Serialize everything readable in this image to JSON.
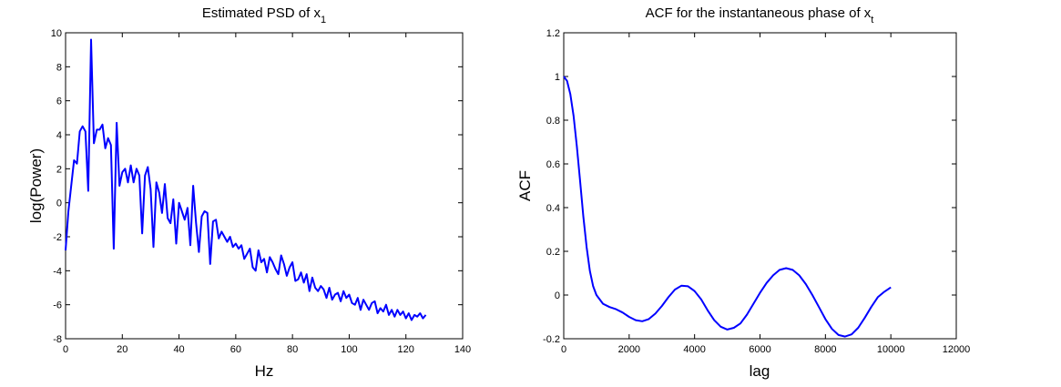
{
  "chart_data": [
    {
      "type": "line",
      "title": "Estimated PSD of x",
      "title_subscript": "1",
      "xlabel": "Hz",
      "ylabel": "log(Power)",
      "xlim": [
        0,
        140
      ],
      "ylim": [
        -8,
        10
      ],
      "xticks": [
        0,
        20,
        40,
        60,
        80,
        100,
        120,
        140
      ],
      "yticks": [
        -8,
        -6,
        -4,
        -2,
        0,
        2,
        4,
        6,
        8,
        10
      ],
      "grid": false,
      "color": "#0000ff",
      "x": [
        0,
        1,
        2,
        3,
        4,
        5,
        6,
        7,
        8,
        9,
        10,
        11,
        12,
        13,
        14,
        15,
        16,
        17,
        18,
        19,
        20,
        21,
        22,
        23,
        24,
        25,
        26,
        27,
        28,
        29,
        30,
        31,
        32,
        33,
        34,
        35,
        36,
        37,
        38,
        39,
        40,
        41,
        42,
        43,
        44,
        45,
        46,
        47,
        48,
        49,
        50,
        51,
        52,
        53,
        54,
        55,
        56,
        57,
        58,
        59,
        60,
        61,
        62,
        63,
        64,
        65,
        66,
        67,
        68,
        69,
        70,
        71,
        72,
        73,
        74,
        75,
        76,
        77,
        78,
        79,
        80,
        81,
        82,
        83,
        84,
        85,
        86,
        87,
        88,
        89,
        90,
        91,
        92,
        93,
        94,
        95,
        96,
        97,
        98,
        99,
        100,
        101,
        102,
        103,
        104,
        105,
        106,
        107,
        108,
        109,
        110,
        111,
        112,
        113,
        114,
        115,
        116,
        117,
        118,
        119,
        120,
        121,
        122,
        123,
        124,
        125,
        126,
        127
      ],
      "y": [
        -2.8,
        -0.5,
        1.0,
        2.5,
        2.3,
        4.2,
        4.5,
        4.2,
        0.7,
        9.6,
        3.5,
        4.3,
        4.3,
        4.6,
        3.2,
        3.8,
        3.4,
        -2.7,
        4.7,
        1.0,
        1.8,
        2.0,
        1.2,
        2.2,
        1.2,
        2.0,
        1.6,
        -1.8,
        1.6,
        2.1,
        0.8,
        -2.6,
        1.2,
        0.6,
        -0.6,
        1.1,
        -0.9,
        -1.2,
        0.2,
        -2.4,
        0.0,
        -0.5,
        -1.0,
        -0.3,
        -2.5,
        1.0,
        -1.2,
        -2.9,
        -0.8,
        -0.5,
        -0.6,
        -3.6,
        -1.1,
        -1.0,
        -2.1,
        -1.7,
        -2.0,
        -2.3,
        -2.0,
        -2.6,
        -2.4,
        -2.7,
        -2.5,
        -3.3,
        -3.0,
        -2.7,
        -3.8,
        -4.0,
        -2.8,
        -3.5,
        -3.3,
        -4.1,
        -3.2,
        -3.5,
        -3.9,
        -4.2,
        -3.1,
        -3.6,
        -4.3,
        -3.8,
        -3.5,
        -4.6,
        -4.5,
        -4.1,
        -4.7,
        -4.2,
        -5.2,
        -4.4,
        -5.0,
        -5.2,
        -4.9,
        -5.1,
        -5.6,
        -5.0,
        -5.7,
        -5.4,
        -5.3,
        -5.8,
        -5.2,
        -5.6,
        -5.4,
        -5.9,
        -6.0,
        -5.6,
        -6.3,
        -5.7,
        -6.0,
        -6.3,
        -5.9,
        -5.8,
        -6.5,
        -6.2,
        -6.4,
        -6.0,
        -6.6,
        -6.3,
        -6.7,
        -6.3,
        -6.6,
        -6.4,
        -6.8,
        -6.5,
        -6.9,
        -6.6,
        -6.7,
        -6.5,
        -6.8,
        -6.6
      ]
    },
    {
      "type": "line",
      "title": "ACF for the instantaneous phase of x",
      "title_subscript": "t",
      "xlabel": "lag",
      "ylabel": "ACF",
      "xlim": [
        0,
        12000
      ],
      "ylim": [
        -0.2,
        1.2
      ],
      "xticks": [
        0,
        2000,
        4000,
        6000,
        8000,
        10000,
        12000
      ],
      "yticks": [
        -0.2,
        0,
        0.2,
        0.4,
        0.6,
        0.8,
        1,
        1.2
      ],
      "grid": false,
      "color": "#0000ff",
      "x": [
        0,
        100,
        200,
        300,
        400,
        500,
        600,
        700,
        800,
        900,
        1000,
        1200,
        1400,
        1600,
        1800,
        2000,
        2200,
        2400,
        2600,
        2800,
        3000,
        3200,
        3400,
        3600,
        3800,
        4000,
        4200,
        4400,
        4600,
        4800,
        5000,
        5200,
        5400,
        5600,
        5800,
        6000,
        6200,
        6400,
        6600,
        6800,
        7000,
        7200,
        7400,
        7600,
        7800,
        8000,
        8200,
        8400,
        8600,
        8800,
        9000,
        9200,
        9400,
        9600,
        9800,
        10000
      ],
      "y": [
        1.0,
        0.98,
        0.92,
        0.82,
        0.68,
        0.52,
        0.36,
        0.22,
        0.11,
        0.04,
        0.0,
        -0.04,
        -0.055,
        -0.065,
        -0.08,
        -0.1,
        -0.115,
        -0.12,
        -0.11,
        -0.085,
        -0.05,
        -0.01,
        0.025,
        0.043,
        0.04,
        0.018,
        -0.02,
        -0.07,
        -0.115,
        -0.145,
        -0.158,
        -0.15,
        -0.13,
        -0.09,
        -0.04,
        0.01,
        0.055,
        0.09,
        0.115,
        0.123,
        0.115,
        0.09,
        0.05,
        0.0,
        -0.055,
        -0.11,
        -0.155,
        -0.183,
        -0.19,
        -0.18,
        -0.15,
        -0.105,
        -0.055,
        -0.01,
        0.015,
        0.035
      ]
    }
  ]
}
